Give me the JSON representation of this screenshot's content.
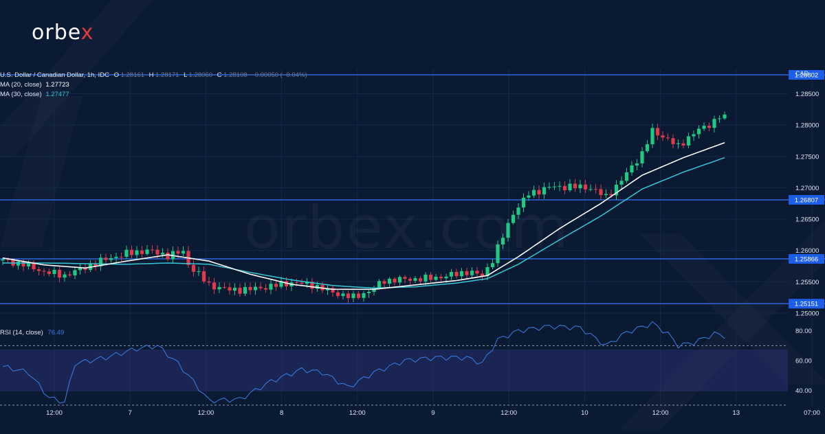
{
  "brand": {
    "logo_left": "orbe",
    "logo_x": "x",
    "watermark": "orbex.com"
  },
  "legend": {
    "symbol": "U.S. Dollar / Canadian Dollar, 1h, IDC",
    "o_label": "O",
    "o_value": "1.28161",
    "h_label": "H",
    "h_value": "1.28171",
    "l_label": "L",
    "l_value": "1.28060",
    "c_label": "C",
    "c_value": "1.28108",
    "change": "−0.00050 (−0.04%)",
    "ma20_label": "MA (20, close)",
    "ma20_value": "1.27723",
    "ma30_label": "MA (30, close)",
    "ma30_value": "1.27477",
    "rsi_label": "RSI (14, close)",
    "rsi_value": "76.49"
  },
  "chart_data": {
    "type": "candlestick",
    "symbol": "USD/CAD",
    "timeframe": "1h",
    "currency": "CAD",
    "y_ticks": [
      "1.28500",
      "1.28000",
      "1.27500",
      "1.27000",
      "1.26500",
      "1.26000",
      "1.25500",
      "1.25000"
    ],
    "ylim": [
      1.25,
      1.289
    ],
    "x_ticks": [
      "12:00",
      "7",
      "12:00",
      "8",
      "12:00",
      "9",
      "12:00",
      "10",
      "12:00",
      "13",
      "07:00"
    ],
    "horizontal_levels": [
      {
        "label": "1.28802",
        "value": 1.28802
      },
      {
        "label": "1.26807",
        "value": 1.26807
      },
      {
        "label": "1.25866",
        "value": 1.25866
      },
      {
        "label": "1.25151",
        "value": 1.25151
      }
    ],
    "close_anchors": [
      {
        "t": 0,
        "v": 1.2584
      },
      {
        "t": 4,
        "v": 1.2578
      },
      {
        "t": 8,
        "v": 1.2566
      },
      {
        "t": 12,
        "v": 1.256
      },
      {
        "t": 16,
        "v": 1.2573
      },
      {
        "t": 20,
        "v": 1.2586
      },
      {
        "t": 24,
        "v": 1.2595
      },
      {
        "t": 28,
        "v": 1.26
      },
      {
        "t": 32,
        "v": 1.2592
      },
      {
        "t": 35,
        "v": 1.2598
      },
      {
        "t": 36,
        "v": 1.2578
      },
      {
        "t": 40,
        "v": 1.2545
      },
      {
        "t": 44,
        "v": 1.2537
      },
      {
        "t": 48,
        "v": 1.2538
      },
      {
        "t": 52,
        "v": 1.2543
      },
      {
        "t": 56,
        "v": 1.2549
      },
      {
        "t": 60,
        "v": 1.2545
      },
      {
        "t": 64,
        "v": 1.2533
      },
      {
        "t": 68,
        "v": 1.2525
      },
      {
        "t": 71,
        "v": 1.2535
      },
      {
        "t": 74,
        "v": 1.2552
      },
      {
        "t": 78,
        "v": 1.2554
      },
      {
        "t": 82,
        "v": 1.2555
      },
      {
        "t": 86,
        "v": 1.2559
      },
      {
        "t": 90,
        "v": 1.2566
      },
      {
        "t": 93,
        "v": 1.256
      },
      {
        "t": 95,
        "v": 1.2585
      },
      {
        "t": 99,
        "v": 1.266
      },
      {
        "t": 102,
        "v": 1.269
      },
      {
        "t": 106,
        "v": 1.2701
      },
      {
        "t": 110,
        "v": 1.2702
      },
      {
        "t": 114,
        "v": 1.27
      },
      {
        "t": 117,
        "v": 1.2685
      },
      {
        "t": 120,
        "v": 1.2712
      },
      {
        "t": 124,
        "v": 1.2755
      },
      {
        "t": 126,
        "v": 1.279
      },
      {
        "t": 129,
        "v": 1.2778
      },
      {
        "t": 131,
        "v": 1.2765
      },
      {
        "t": 134,
        "v": 1.2788
      },
      {
        "t": 137,
        "v": 1.28
      },
      {
        "t": 139,
        "v": 1.2815
      },
      {
        "t": 140,
        "v": 1.2811
      }
    ],
    "ma20_anchors": [
      {
        "t": 0,
        "v": 1.2588
      },
      {
        "t": 8,
        "v": 1.2577
      },
      {
        "t": 16,
        "v": 1.2572
      },
      {
        "t": 24,
        "v": 1.2583
      },
      {
        "t": 32,
        "v": 1.2593
      },
      {
        "t": 40,
        "v": 1.2583
      },
      {
        "t": 48,
        "v": 1.2562
      },
      {
        "t": 56,
        "v": 1.2546
      },
      {
        "t": 64,
        "v": 1.2538
      },
      {
        "t": 72,
        "v": 1.2538
      },
      {
        "t": 80,
        "v": 1.2545
      },
      {
        "t": 88,
        "v": 1.2552
      },
      {
        "t": 94,
        "v": 1.256
      },
      {
        "t": 100,
        "v": 1.259
      },
      {
        "t": 108,
        "v": 1.2635
      },
      {
        "t": 116,
        "v": 1.2675
      },
      {
        "t": 124,
        "v": 1.272
      },
      {
        "t": 132,
        "v": 1.2748
      },
      {
        "t": 140,
        "v": 1.2772
      }
    ],
    "ma30_anchors": [
      {
        "t": 0,
        "v": 1.258
      },
      {
        "t": 8,
        "v": 1.258
      },
      {
        "t": 16,
        "v": 1.2579
      },
      {
        "t": 24,
        "v": 1.2578
      },
      {
        "t": 32,
        "v": 1.258
      },
      {
        "t": 40,
        "v": 1.2578
      },
      {
        "t": 48,
        "v": 1.2565
      },
      {
        "t": 56,
        "v": 1.2553
      },
      {
        "t": 64,
        "v": 1.2544
      },
      {
        "t": 72,
        "v": 1.254
      },
      {
        "t": 80,
        "v": 1.2542
      },
      {
        "t": 88,
        "v": 1.2548
      },
      {
        "t": 94,
        "v": 1.2555
      },
      {
        "t": 100,
        "v": 1.2578
      },
      {
        "t": 108,
        "v": 1.2617
      },
      {
        "t": 116,
        "v": 1.2655
      },
      {
        "t": 124,
        "v": 1.2698
      },
      {
        "t": 132,
        "v": 1.2725
      },
      {
        "t": 140,
        "v": 1.2748
      }
    ],
    "rsi": {
      "levels": [
        80,
        60,
        40
      ],
      "overbought": 70,
      "oversold": 30,
      "ylim": [
        30,
        90
      ],
      "anchors": [
        {
          "t": 0,
          "v": 56
        },
        {
          "t": 5,
          "v": 52
        },
        {
          "t": 9,
          "v": 35
        },
        {
          "t": 12,
          "v": 32
        },
        {
          "t": 14,
          "v": 58
        },
        {
          "t": 20,
          "v": 62
        },
        {
          "t": 26,
          "v": 68
        },
        {
          "t": 30,
          "v": 70
        },
        {
          "t": 34,
          "v": 58
        },
        {
          "t": 36,
          "v": 50
        },
        {
          "t": 40,
          "v": 33
        },
        {
          "t": 46,
          "v": 34
        },
        {
          "t": 52,
          "v": 46
        },
        {
          "t": 58,
          "v": 54
        },
        {
          "t": 62,
          "v": 52
        },
        {
          "t": 67,
          "v": 42
        },
        {
          "t": 72,
          "v": 52
        },
        {
          "t": 78,
          "v": 60
        },
        {
          "t": 84,
          "v": 62
        },
        {
          "t": 90,
          "v": 62
        },
        {
          "t": 93,
          "v": 58
        },
        {
          "t": 96,
          "v": 74
        },
        {
          "t": 100,
          "v": 80
        },
        {
          "t": 106,
          "v": 83
        },
        {
          "t": 112,
          "v": 82
        },
        {
          "t": 117,
          "v": 70
        },
        {
          "t": 121,
          "v": 79
        },
        {
          "t": 126,
          "v": 85
        },
        {
          "t": 129,
          "v": 78
        },
        {
          "t": 131,
          "v": 70
        },
        {
          "t": 134,
          "v": 72
        },
        {
          "t": 138,
          "v": 78
        },
        {
          "t": 140,
          "v": 76.5
        }
      ]
    },
    "bull_color": "#1fc883",
    "bear_color": "#e0394a",
    "line_color": "#2f6ee8",
    "ma20_color": "#ffffff",
    "ma30_color": "#35c8d6",
    "rsi_color": "#3a7fe6"
  }
}
